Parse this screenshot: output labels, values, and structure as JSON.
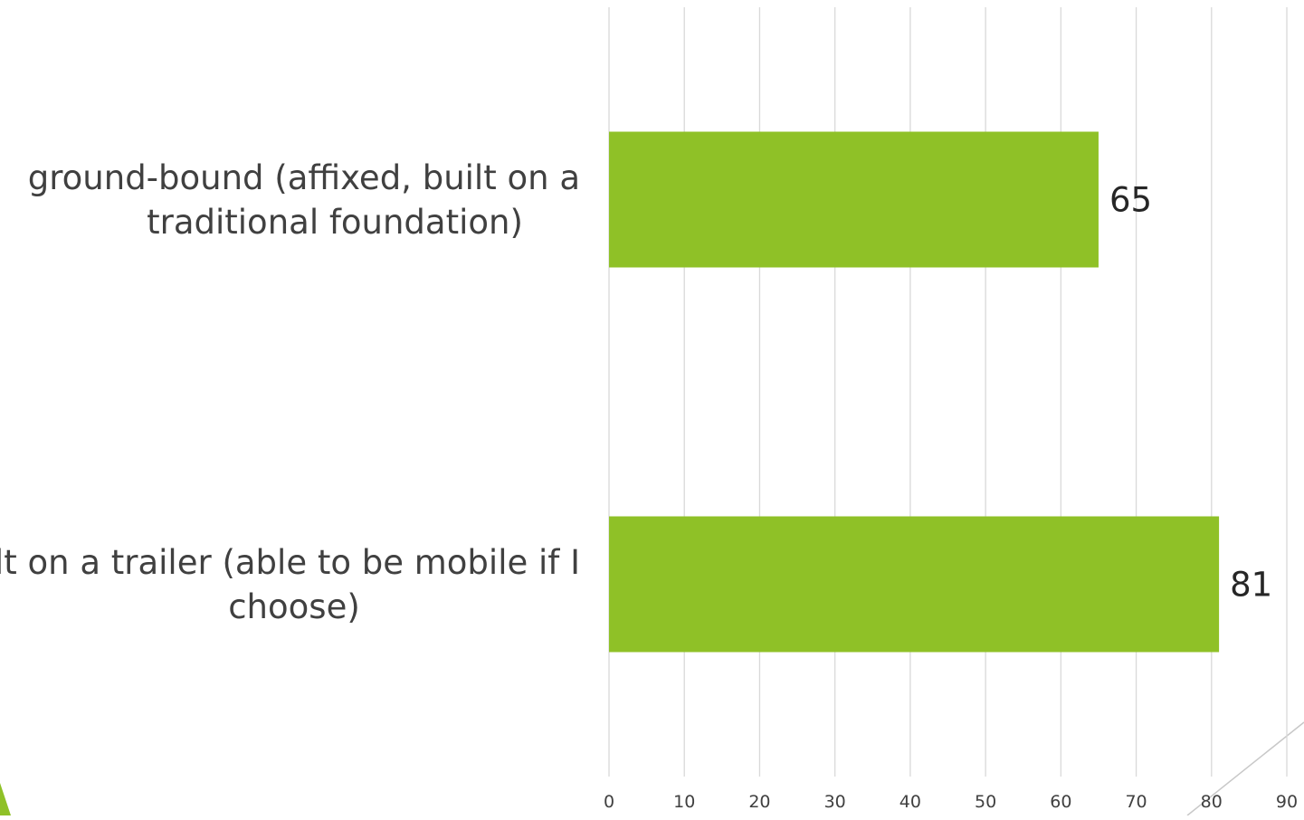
{
  "chart_data": {
    "type": "bar",
    "orientation": "horizontal",
    "title": "",
    "xlabel": "",
    "ylabel": "",
    "categories": [
      [
        "ground-bound (affixed, built on a",
        "traditional foundation)"
      ],
      [
        "built on a trailer (able to be mobile if I",
        "choose)"
      ]
    ],
    "values": [
      65,
      81
    ],
    "data_labels": [
      "65",
      "81"
    ],
    "xlim": [
      0,
      90
    ],
    "xticks": [
      "0",
      "10",
      "20",
      "30",
      "40",
      "50",
      "60",
      "70",
      "80",
      "90"
    ],
    "grid": "vertical",
    "legend": "none"
  },
  "colors": {
    "bar": "#8fc127",
    "grid": "#d9d9d9",
    "decor_green": "#8fc127",
    "decor_line": "#c8c8c8"
  }
}
